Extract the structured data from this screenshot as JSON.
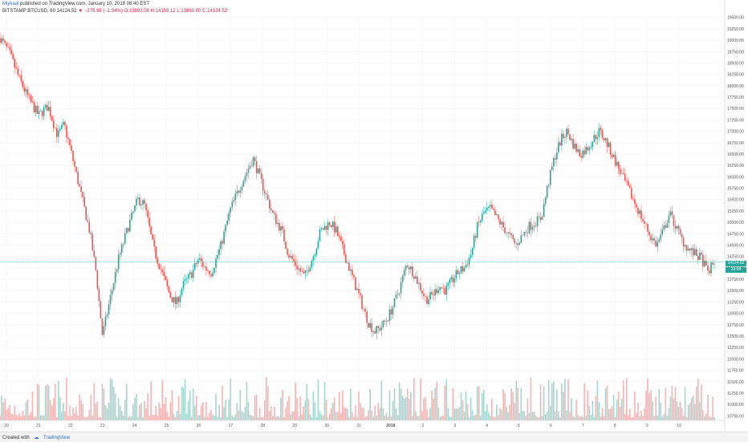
{
  "header": {
    "author": "Miykaal",
    "published": "published on TradingView.com, January 10, 2018 08:40 EST",
    "symbol": "BITSTAMP:BTCUSD, 60",
    "last": "14124.52",
    "change": "−278.99 (−1.94%)",
    "open": "O:13892.08",
    "high": "H:14159.12",
    "low": "L:13890.00",
    "close": "C:14124.52"
  },
  "footer": {
    "created": "Created with",
    "brand": "TradingView"
  },
  "price_tags": {
    "last": "14124.52",
    "timer": "19:04"
  },
  "colors": {
    "up": "#26a69a",
    "down": "#ef5350",
    "vol_up": "#a5d6cf",
    "vol_down": "#f4b5b5",
    "grid": "#f0f0f0"
  },
  "chart_data": {
    "type": "candlestick",
    "y_ticks": [
      10750,
      11000,
      11250,
      11500,
      11750,
      12000,
      12250,
      12500,
      12750,
      13000,
      13250,
      13500,
      13750,
      14000,
      14250,
      14500,
      14750,
      15000,
      15250,
      15500,
      15750,
      16000,
      16250,
      16500,
      16750,
      17000,
      17250,
      17500,
      17750,
      18000,
      18250,
      18500,
      18750,
      19000,
      19250,
      19500
    ],
    "ylim": [
      10650,
      19530
    ],
    "last_price": 14124.52,
    "x_labels": [
      "20",
      "21",
      "22",
      "23",
      "24",
      "25",
      "26",
      "27",
      "28",
      "29",
      "30",
      "31",
      "2018",
      "2",
      "3",
      "4",
      "5",
      "6",
      "7",
      "8",
      "9",
      "10"
    ],
    "x_label_pos": [
      0.2,
      1.2,
      2.2,
      3.2,
      4.2,
      5.2,
      6.2,
      7.2,
      8.2,
      9.2,
      10.2,
      11.2,
      12.2,
      13.2,
      14.2,
      15.2,
      16.2,
      17.2,
      18.2,
      19.2,
      20.2,
      21.2
    ],
    "x_span": 22.6,
    "path": [
      [
        0,
        19050
      ],
      [
        0.3,
        18700
      ],
      [
        0.6,
        18150
      ],
      [
        0.9,
        17700
      ],
      [
        1.2,
        17350
      ],
      [
        1.5,
        17550
      ],
      [
        1.8,
        16900
      ],
      [
        2.0,
        17150
      ],
      [
        2.2,
        16600
      ],
      [
        2.5,
        15700
      ],
      [
        2.8,
        14800
      ],
      [
        3.0,
        13900
      ],
      [
        3.2,
        12500
      ],
      [
        3.4,
        13200
      ],
      [
        3.7,
        14200
      ],
      [
        4.0,
        14900
      ],
      [
        4.3,
        15500
      ],
      [
        4.5,
        15400
      ],
      [
        4.8,
        14400
      ],
      [
        5.0,
        14000
      ],
      [
        5.3,
        13400
      ],
      [
        5.5,
        13200
      ],
      [
        5.7,
        13600
      ],
      [
        6.0,
        13900
      ],
      [
        6.2,
        14200
      ],
      [
        6.4,
        14000
      ],
      [
        6.6,
        13900
      ],
      [
        6.9,
        14500
      ],
      [
        7.2,
        15300
      ],
      [
        7.5,
        15800
      ],
      [
        7.7,
        16100
      ],
      [
        7.9,
        16400
      ],
      [
        8.1,
        16000
      ],
      [
        8.3,
        15600
      ],
      [
        8.5,
        15200
      ],
      [
        8.8,
        14800
      ],
      [
        9.0,
        14300
      ],
      [
        9.3,
        14000
      ],
      [
        9.5,
        13800
      ],
      [
        9.8,
        14300
      ],
      [
        10.0,
        14800
      ],
      [
        10.3,
        15000
      ],
      [
        10.5,
        14800
      ],
      [
        10.7,
        14400
      ],
      [
        10.9,
        14000
      ],
      [
        11.1,
        13600
      ],
      [
        11.3,
        13200
      ],
      [
        11.5,
        12800
      ],
      [
        11.7,
        12600
      ],
      [
        11.9,
        12700
      ],
      [
        12.1,
        12900
      ],
      [
        12.3,
        13200
      ],
      [
        12.5,
        13600
      ],
      [
        12.7,
        14100
      ],
      [
        12.9,
        13900
      ],
      [
        13.1,
        13600
      ],
      [
        13.3,
        13300
      ],
      [
        13.5,
        13400
      ],
      [
        13.7,
        13600
      ],
      [
        13.9,
        13500
      ],
      [
        14.1,
        13700
      ],
      [
        14.3,
        13900
      ],
      [
        14.5,
        14000
      ],
      [
        14.7,
        14300
      ],
      [
        14.9,
        14900
      ],
      [
        15.1,
        15200
      ],
      [
        15.3,
        15300
      ],
      [
        15.5,
        15100
      ],
      [
        15.7,
        14900
      ],
      [
        15.9,
        14700
      ],
      [
        16.1,
        14500
      ],
      [
        16.3,
        14700
      ],
      [
        16.5,
        14900
      ],
      [
        16.7,
        15000
      ],
      [
        16.9,
        15100
      ],
      [
        17.1,
        15800
      ],
      [
        17.3,
        16400
      ],
      [
        17.5,
        16800
      ],
      [
        17.7,
        17000
      ],
      [
        17.9,
        16700
      ],
      [
        18.1,
        16500
      ],
      [
        18.3,
        16600
      ],
      [
        18.5,
        16800
      ],
      [
        18.7,
        17000
      ],
      [
        18.9,
        16800
      ],
      [
        19.1,
        16500
      ],
      [
        19.3,
        16200
      ],
      [
        19.5,
        15900
      ],
      [
        19.7,
        15600
      ],
      [
        19.9,
        15300
      ],
      [
        20.1,
        15000
      ],
      [
        20.3,
        14700
      ],
      [
        20.5,
        14500
      ],
      [
        20.7,
        14800
      ],
      [
        20.9,
        15200
      ],
      [
        21.1,
        14900
      ],
      [
        21.3,
        14600
      ],
      [
        21.5,
        14400
      ],
      [
        21.7,
        14300
      ],
      [
        21.9,
        14200
      ],
      [
        22.1,
        13900
      ],
      [
        22.3,
        14124
      ]
    ]
  }
}
